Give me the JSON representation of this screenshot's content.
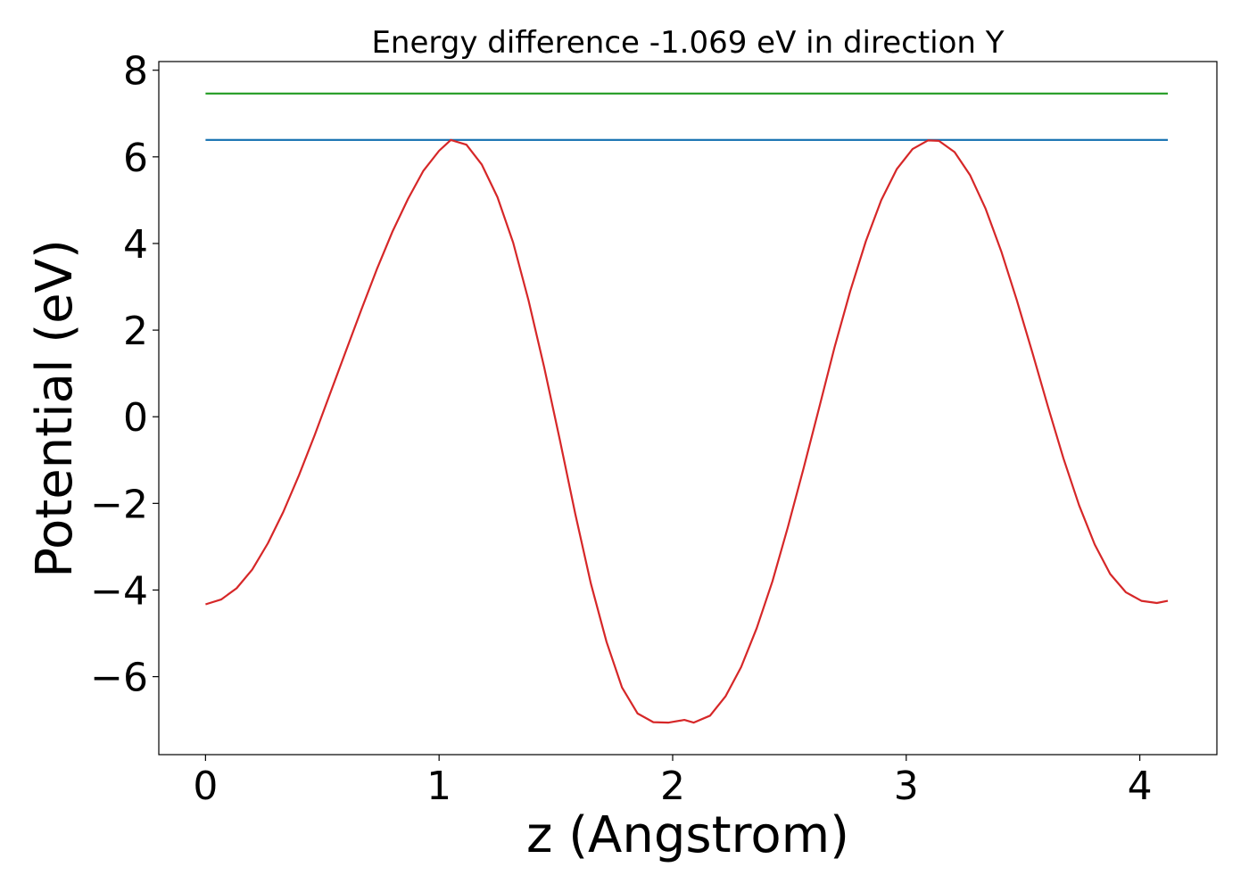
{
  "chart_data": {
    "type": "line",
    "title": "Energy difference -1.069 eV in direction Y",
    "xlabel": "z (Angstrom)",
    "ylabel": "Potential (eV)",
    "xlim": [
      -0.2,
      4.33
    ],
    "ylim": [
      -7.8,
      8.2
    ],
    "xticks": [
      0,
      1,
      2,
      3,
      4
    ],
    "yticks": [
      -6,
      -4,
      -2,
      0,
      2,
      4,
      6,
      8
    ],
    "xtick_labels": [
      "0",
      "1",
      "2",
      "3",
      "4"
    ],
    "ytick_labels": [
      "−6",
      "−4",
      "−2",
      "0",
      "2",
      "4",
      "6",
      "8"
    ],
    "grid": false,
    "series": [
      {
        "color": "#2ca02c",
        "x": [
          0,
          4.12
        ],
        "y": [
          7.46,
          7.46
        ]
      },
      {
        "color": "#1f77b4",
        "x": [
          0,
          4.12
        ],
        "y": [
          6.39,
          6.39
        ]
      },
      {
        "color": "#d62728",
        "x": [
          0.0,
          0.067,
          0.133,
          0.2,
          0.267,
          0.333,
          0.4,
          0.467,
          0.533,
          0.6,
          0.667,
          0.733,
          0.8,
          0.867,
          0.933,
          1.0,
          1.05,
          1.117,
          1.183,
          1.25,
          1.317,
          1.383,
          1.45,
          1.517,
          1.583,
          1.65,
          1.717,
          1.783,
          1.85,
          1.917,
          1.983,
          2.05,
          2.09,
          2.16,
          2.227,
          2.293,
          2.36,
          2.427,
          2.493,
          2.56,
          2.627,
          2.693,
          2.76,
          2.827,
          2.893,
          2.96,
          3.027,
          3.093,
          3.14,
          3.207,
          3.273,
          3.34,
          3.407,
          3.473,
          3.54,
          3.607,
          3.673,
          3.74,
          3.807,
          3.873,
          3.94,
          4.007,
          4.073,
          4.12
        ],
        "y": [
          -4.33,
          -4.22,
          -3.96,
          -3.53,
          -2.92,
          -2.2,
          -1.35,
          -0.43,
          0.53,
          1.5,
          2.47,
          3.4,
          4.27,
          5.03,
          5.68,
          6.14,
          6.39,
          6.28,
          5.82,
          5.07,
          4.02,
          2.69,
          1.14,
          -0.53,
          -2.24,
          -3.85,
          -5.2,
          -6.25,
          -6.85,
          -7.05,
          -7.06,
          -7.0,
          -7.06,
          -6.9,
          -6.45,
          -5.78,
          -4.88,
          -3.8,
          -2.55,
          -1.2,
          0.2,
          1.6,
          2.9,
          4.05,
          5.0,
          5.72,
          6.18,
          6.38,
          6.37,
          6.11,
          5.58,
          4.8,
          3.82,
          2.7,
          1.48,
          0.23,
          -0.96,
          -2.04,
          -2.95,
          -3.63,
          -4.05,
          -4.25,
          -4.3,
          -4.25
        ]
      }
    ],
    "line_width": 2.2
  }
}
